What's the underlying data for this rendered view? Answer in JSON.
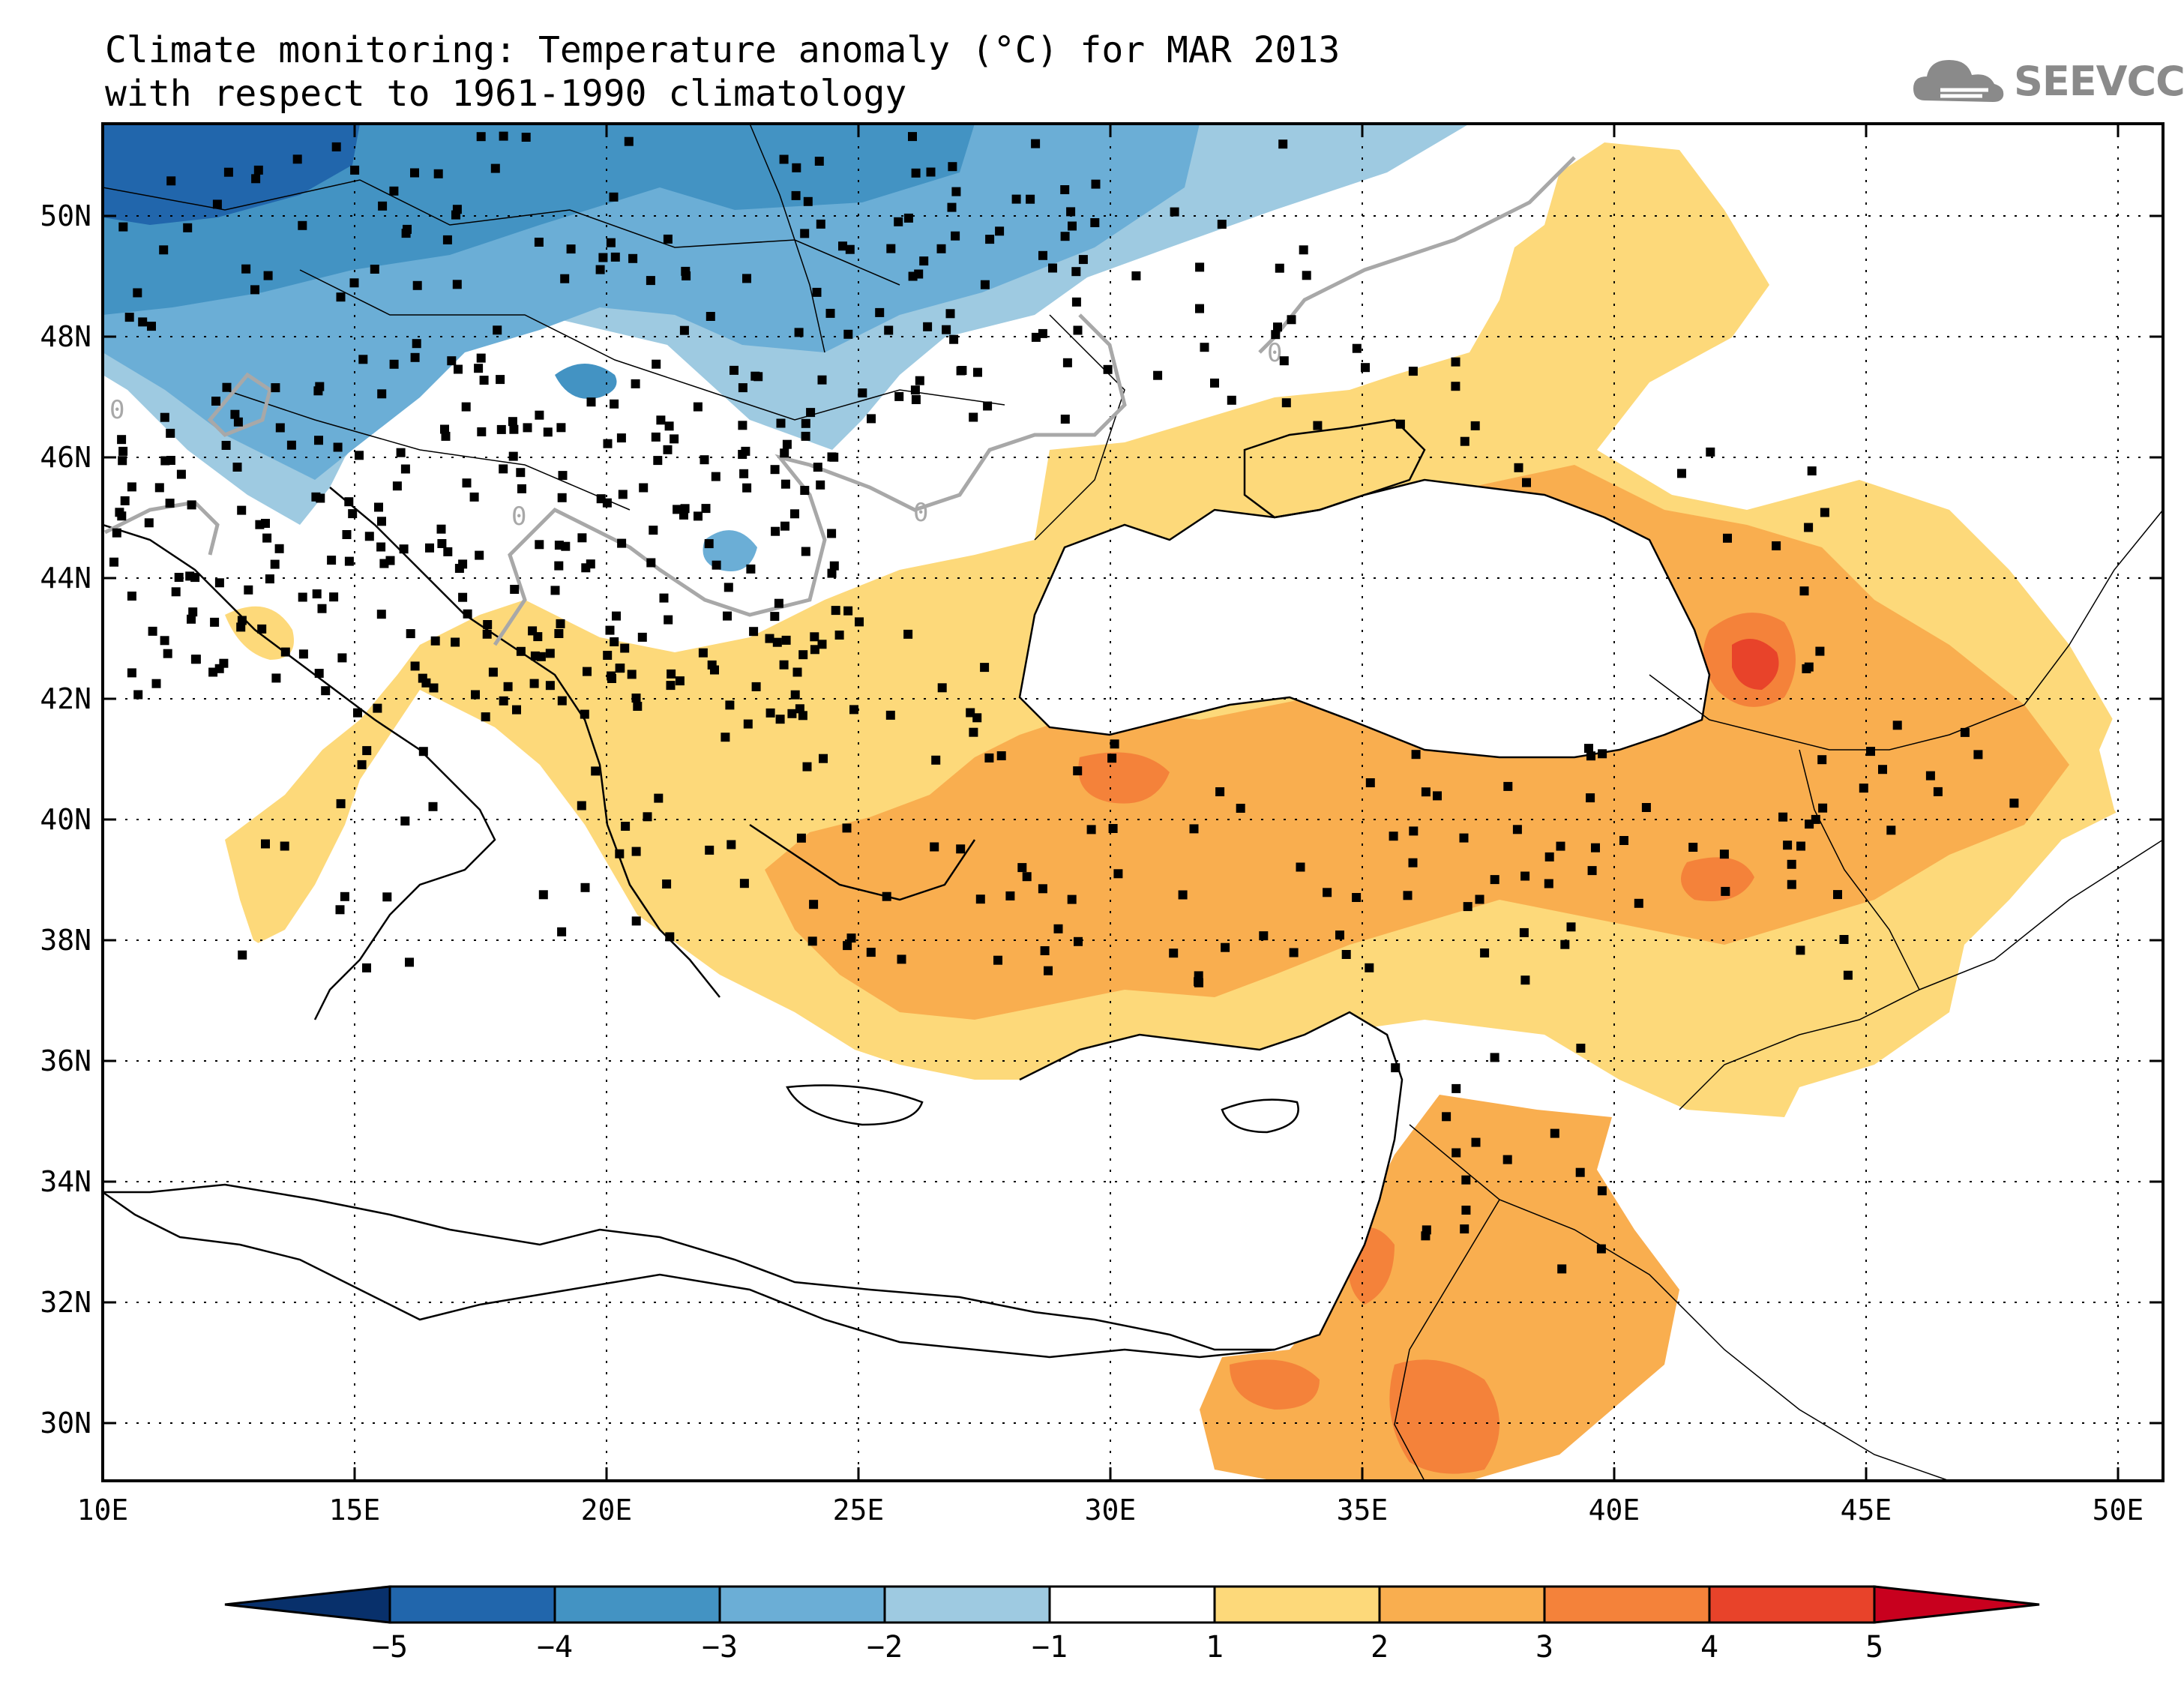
{
  "title": {
    "line1": "Climate monitoring: Temperature anomaly (°C) for MAR 2013",
    "line2": "with respect to 1961-1990 climatology"
  },
  "logo": {
    "text": "SEEVCCC",
    "icon": "cloud-icon"
  },
  "axes": {
    "lon_labels": [
      "10E",
      "15E",
      "20E",
      "25E",
      "30E",
      "35E",
      "40E",
      "45E",
      "50E"
    ],
    "lat_labels": [
      "50N",
      "48N",
      "46N",
      "44N",
      "42N",
      "40N",
      "38N",
      "36N",
      "34N",
      "32N",
      "30N"
    ]
  },
  "colorbar": {
    "labels": [
      "-5",
      "-4",
      "-3",
      "-2",
      "-1",
      "1",
      "2",
      "3",
      "4",
      "5"
    ],
    "colors": [
      "#08306b",
      "#2166ac",
      "#4393c3",
      "#6baed6",
      "#9ecae1",
      "#ffffff",
      "#fdd97a",
      "#f9ae4f",
      "#f4823a",
      "#e8432a",
      "#c8001e"
    ]
  },
  "contour_labels": [
    "0",
    "0",
    "0",
    "0"
  ]
}
